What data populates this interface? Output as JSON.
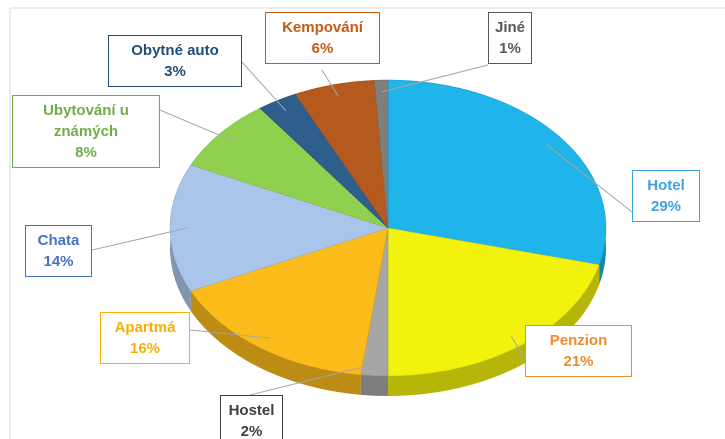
{
  "chart_data": {
    "type": "pie",
    "categories": [
      "Hotel",
      "Penzion",
      "Hostel",
      "Apartmá",
      "Chata",
      "Ubytování u známých",
      "Obytné auto",
      "Kempování",
      "Jiné"
    ],
    "values": [
      29,
      21,
      2,
      16,
      14,
      8,
      3,
      6,
      1
    ],
    "value_labels": [
      "29%",
      "21%",
      "2%",
      "16%",
      "14%",
      "8%",
      "3%",
      "6%",
      "1%"
    ],
    "colors": [
      "#1fb4ea",
      "#f2f20c",
      "#a6a6a6",
      "#fbbb1a",
      "#a9c6ea",
      "#8fd14f",
      "#2e5e8c",
      "#b55a1e",
      "#7f7f7f"
    ],
    "label_colors": [
      "#3fa3dc",
      "#f08a2c",
      "#404040",
      "#f5b000",
      "#4472c4",
      "#70ad47",
      "#1f4e79",
      "#c55a11",
      "#595959"
    ]
  }
}
